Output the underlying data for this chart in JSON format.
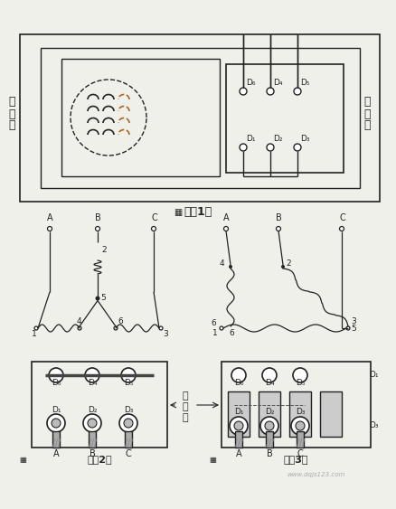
{
  "bg_color": "#f0f0eb",
  "line_color": "#222222",
  "fig1_label": "图（1）",
  "fig2_label": "图（2）",
  "fig3_label": "图（3）",
  "motor_label_lines": [
    "电",
    "动",
    "机"
  ],
  "terminal_label_lines": [
    "接",
    "线",
    "板"
  ],
  "D_top": [
    "D₆",
    "D₄",
    "D₅"
  ],
  "D_bot": [
    "D₁",
    "D₂",
    "D₃"
  ]
}
